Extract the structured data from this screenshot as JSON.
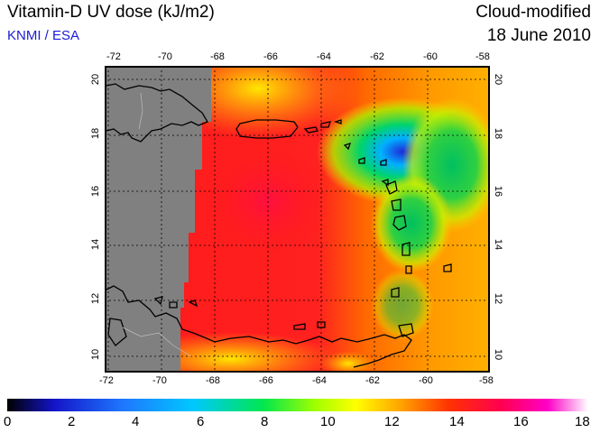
{
  "header": {
    "title": "Vitamin-D UV dose (kJ/m2)",
    "subtitle": "KNMI / ESA",
    "product": "Cloud-modified",
    "date": "18 June 2010"
  },
  "map": {
    "lon_ticks_top": [
      "-72",
      "-70",
      "-68",
      "-66",
      "-64",
      "-62",
      "-60",
      "-58"
    ],
    "lon_ticks_bottom": [
      "-72",
      "-70",
      "-68",
      "-66",
      "-64",
      "-62",
      "-60",
      "-58"
    ],
    "lat_ticks_left": [
      "20",
      "18",
      "16",
      "14",
      "12",
      "10"
    ],
    "lat_ticks_right": [
      "20",
      "18",
      "16",
      "14",
      "12",
      "10"
    ],
    "colors": {
      "no_data": "#808080",
      "high_dose": "#ff1a1a",
      "medium_dose": "#ff9a00",
      "low_dose": "#2aa84a",
      "coast": "#000000",
      "grid": "#000000"
    }
  },
  "colorbar": {
    "labels": [
      "0",
      "2",
      "4",
      "6",
      "8",
      "10",
      "12",
      "14",
      "16",
      "18"
    ],
    "stops": [
      "#000000",
      "#1414c8",
      "#1e78ff",
      "#00c8ff",
      "#00e650",
      "#a0ff00",
      "#ffff00",
      "#ffa000",
      "#ff3200",
      "#ff0050",
      "#ff00c8",
      "#ffffff"
    ]
  }
}
